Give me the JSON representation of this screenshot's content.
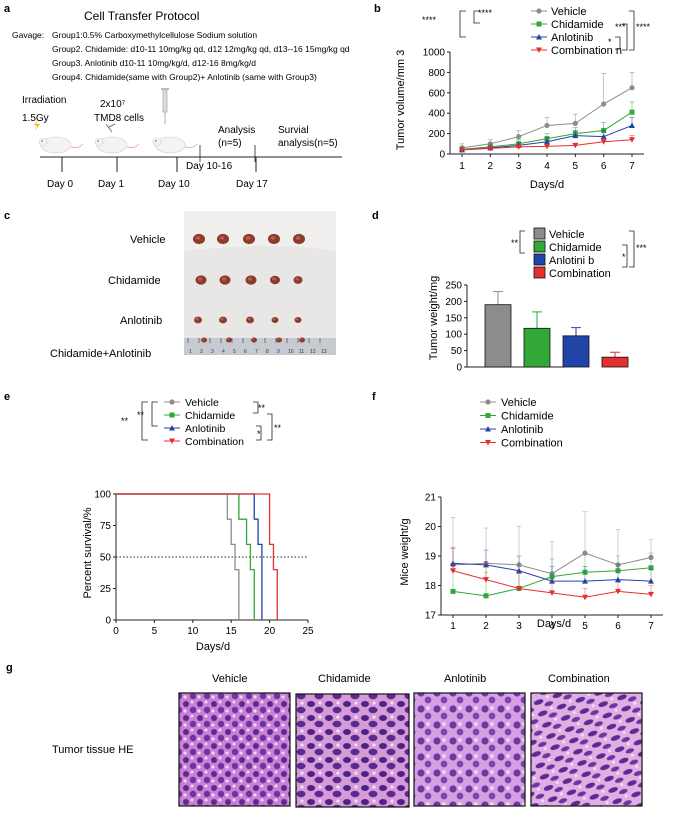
{
  "panels": {
    "a": "a",
    "b": "b",
    "c": "c",
    "d": "d",
    "e": "e",
    "f": "f",
    "g": "g"
  },
  "protocol": {
    "title": "Cell Transfer Protocol",
    "gavage_label": "Gavage:",
    "groups": [
      "Group1:0.5% Carboxymethylcellulose Sodium solution",
      "Group2. Chidamide: d10-11 10mg/kg  qd, d12 12mg/kg  qd,  d13--16 15mg/kg  qd",
      "Group3. Anlotinib d10-11 10mg/kg/d,  d12-16 8mg/kg/d",
      "Group4.  Chidamide(same with Group2)+ Anlotinib  (same with Group3)"
    ],
    "irradiation": "Irradiation",
    "dose": "1.5Gy",
    "cells_count": "2x10⁷",
    "cells_name": "TMD8 cells",
    "analysis": "Analysis\n(n=5)",
    "survival": "Survial\nanalysis(n=5)",
    "day_range": "Day 10-16",
    "days": [
      "Day 0",
      "Day 1",
      "Day 10",
      "Day 17"
    ]
  },
  "colors": {
    "vehicle": "#8c8c8c",
    "chidamide": "#31a838",
    "anlotinib": "#2244a8",
    "combination": "#e53030"
  },
  "chart_b": {
    "type": "line",
    "ylabel": "Tumor volume/mm 3",
    "xlabel": "Days/d",
    "ylim": [
      0,
      1000
    ],
    "yticks": [
      "0",
      "200",
      "400",
      "600",
      "800",
      "1000"
    ],
    "x": [
      1,
      2,
      3,
      4,
      5,
      6,
      7
    ],
    "series": [
      {
        "name": "Vehicle",
        "values": [
          60,
          100,
          170,
          280,
          300,
          490,
          650
        ],
        "errors": [
          40,
          40,
          60,
          80,
          90,
          300,
          150
        ]
      },
      {
        "name": "Chidamide",
        "values": [
          45,
          70,
          100,
          150,
          200,
          230,
          410
        ],
        "errors": [
          20,
          30,
          40,
          50,
          60,
          80,
          100
        ]
      },
      {
        "name": "Anlotinib",
        "values": [
          40,
          60,
          85,
          120,
          180,
          170,
          280
        ],
        "errors": [
          15,
          20,
          30,
          40,
          50,
          60,
          80
        ]
      },
      {
        "name": "Combination n",
        "values": [
          40,
          55,
          70,
          75,
          85,
          120,
          140
        ],
        "errors": [
          10,
          15,
          20,
          20,
          20,
          30,
          40
        ]
      }
    ],
    "significance": [
      "****",
      "****",
      "*",
      "***",
      "****"
    ]
  },
  "photo_c": {
    "rows": [
      "Vehicle",
      "Chidamide",
      "Anlotinib",
      "Chidamide+Anlotinib"
    ],
    "ruler": [
      "1",
      "2",
      "3",
      "4",
      "5",
      "6",
      "7",
      "8",
      "9",
      "10",
      "11",
      "12",
      "13"
    ]
  },
  "chart_d": {
    "type": "bar",
    "ylabel": "Tumor weight/mg",
    "categories": [
      "Vehicle",
      "Chidamide",
      "Anlotini b",
      "Combination"
    ],
    "values": [
      190,
      118,
      95,
      30
    ],
    "errors": [
      40,
      50,
      25,
      15
    ],
    "ylim": [
      0,
      250
    ],
    "yticks": [
      "0",
      "50",
      "100",
      "150",
      "200",
      "250"
    ],
    "significance": [
      "**",
      "*",
      "***"
    ]
  },
  "chart_e": {
    "type": "line",
    "ylabel": "Percent survival/%",
    "xlabel": "Days/d",
    "xlim": [
      0,
      25
    ],
    "ylim": [
      0,
      100
    ],
    "xticks": [
      "0",
      "5",
      "10",
      "15",
      "20",
      "25"
    ],
    "yticks": [
      "0",
      "25",
      "50",
      "75",
      "100"
    ],
    "legend": [
      "Vehicle",
      "Chidamide",
      "Anlotinib",
      "Combination"
    ],
    "death_days": [
      [
        14.5,
        15,
        15.5,
        16,
        16
      ],
      [
        16,
        17,
        17.5,
        18,
        18
      ],
      [
        18,
        18.5,
        19,
        19,
        19
      ],
      [
        20,
        20,
        20.5,
        21,
        21
      ]
    ],
    "significance": [
      "**",
      "**",
      "**",
      "*",
      "**"
    ]
  },
  "chart_f": {
    "type": "line",
    "ylabel": "Mice weight/g",
    "xlabel": "Days/d",
    "ylim": [
      17,
      21
    ],
    "yticks": [
      "17",
      "18",
      "19",
      "20",
      "21"
    ],
    "x": [
      1,
      2,
      3,
      4,
      5,
      6,
      7
    ],
    "series": [
      {
        "name": "Vehicle",
        "values": [
          18.7,
          18.75,
          18.7,
          18.4,
          19.1,
          18.7,
          18.95
        ],
        "errors": [
          1.6,
          1.2,
          1.3,
          1.1,
          1.4,
          1.2,
          0.6
        ]
      },
      {
        "name": "Chidamide",
        "values": [
          17.8,
          17.65,
          17.9,
          18.3,
          18.45,
          18.5,
          18.6
        ],
        "errors": [
          0.7,
          0.8,
          0.6,
          0.6,
          0.6,
          0.5,
          0.5
        ]
      },
      {
        "name": "Anlotinib",
        "values": [
          18.75,
          18.7,
          18.5,
          18.15,
          18.15,
          18.2,
          18.15
        ],
        "errors": [
          0.5,
          0.5,
          0.5,
          0.5,
          0.5,
          0.5,
          0.4
        ]
      },
      {
        "name": "Combination",
        "values": [
          18.5,
          18.2,
          17.9,
          17.75,
          17.6,
          17.8,
          17.7
        ],
        "errors": [
          0.8,
          0.6,
          0.5,
          0.4,
          0.3,
          0.3,
          0.3
        ]
      }
    ]
  },
  "histology": {
    "titles": [
      "Vehicle",
      "Chidamide",
      "Anlotinib",
      "Combination"
    ],
    "row_label": "Tumor tissue HE"
  }
}
